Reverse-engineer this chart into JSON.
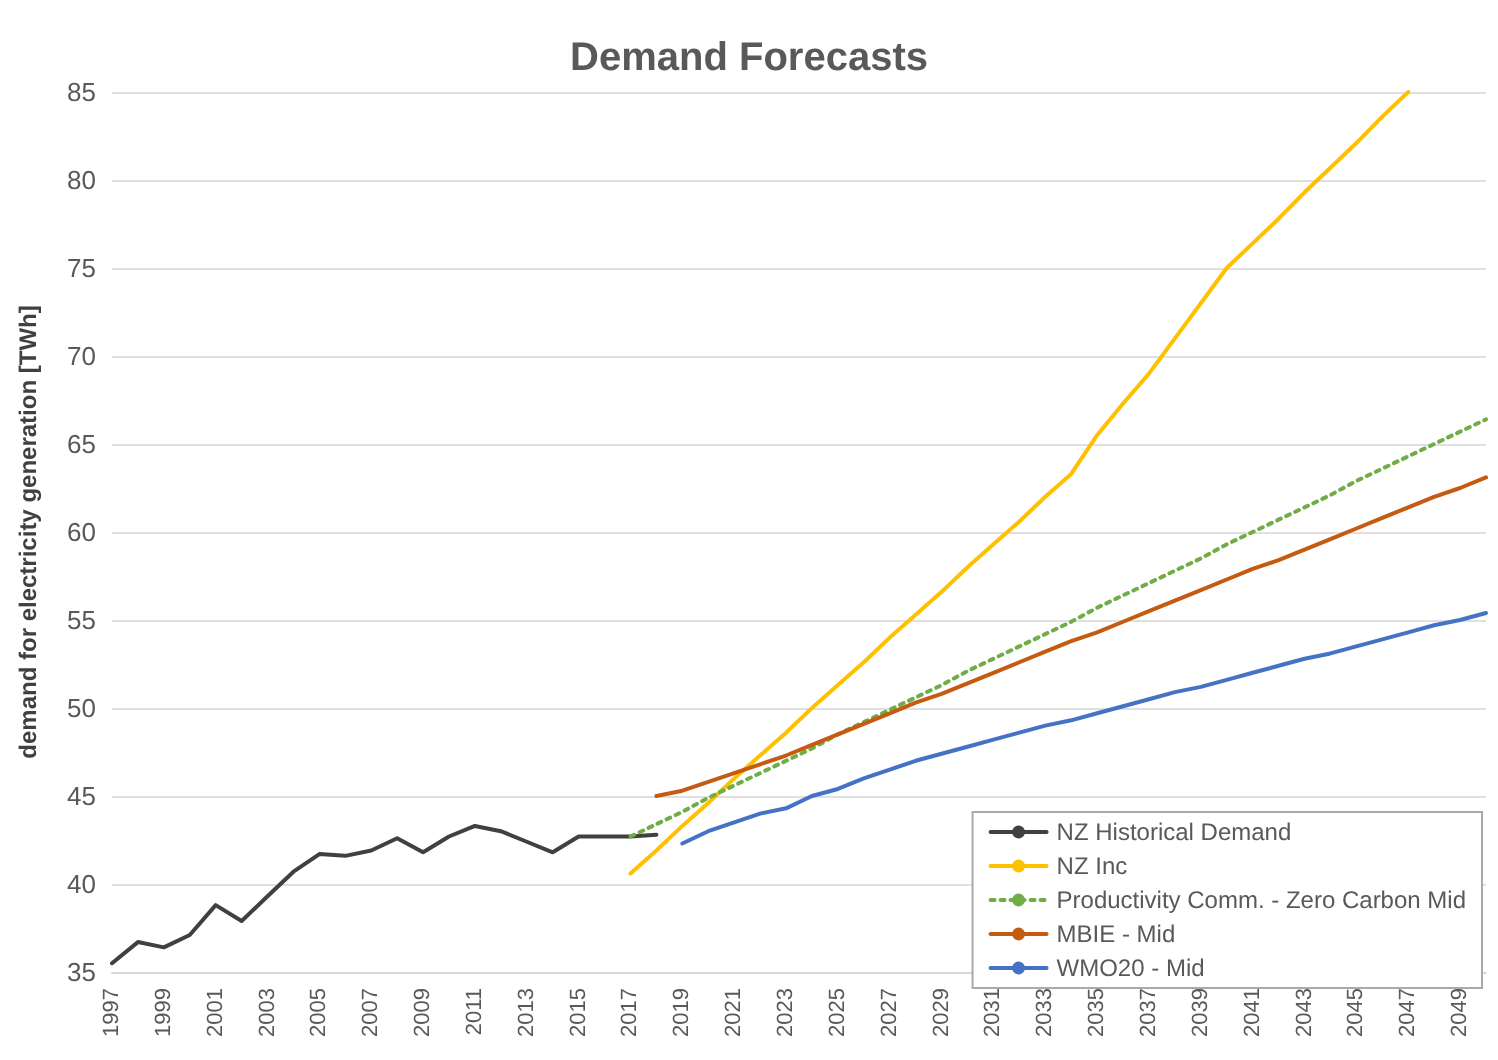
{
  "chart_data": {
    "type": "line",
    "title": "Demand Forecasts",
    "ylabel": "demand for electricity generation [TWh]",
    "categories": [
      "1997",
      null,
      "1999",
      null,
      "2001",
      null,
      "2003",
      null,
      "2005",
      null,
      "2007",
      null,
      "2009",
      null,
      "2011",
      null,
      "2013",
      null,
      "2015",
      null,
      "2017",
      null,
      "2019",
      null,
      "2021",
      null,
      "2023",
      null,
      "2025",
      null,
      "2027",
      null,
      "2029",
      null,
      "2031",
      null,
      "2033",
      null,
      "2035",
      null,
      "2037",
      null,
      "2039",
      null,
      "2041",
      null,
      "2043",
      null,
      "2045",
      null,
      "2047",
      null,
      "2049",
      null
    ],
    "ylim": [
      35,
      85
    ],
    "yticks": [
      35,
      40,
      45,
      50,
      55,
      60,
      65,
      70,
      75,
      80,
      85
    ],
    "grid": "y",
    "legend": "bottom right",
    "marker": "none",
    "series": [
      {
        "name": "NZ Historical Demand",
        "color": "#404040",
        "line_style": "solid",
        "values": [
          35.5,
          36.7,
          36.4,
          37.1,
          38.8,
          37.9,
          39.3,
          40.7,
          41.7,
          41.6,
          41.9,
          42.6,
          41.8,
          42.7,
          43.3,
          43.0,
          42.4,
          41.8,
          42.7,
          42.7,
          42.7,
          42.8,
          null,
          null,
          null,
          null,
          null,
          null,
          null,
          null,
          null,
          null,
          null,
          null,
          null,
          null,
          null,
          null,
          null,
          null,
          null,
          null,
          null,
          null,
          null,
          null,
          null,
          null,
          null,
          null,
          null,
          null,
          null,
          null
        ]
      },
      {
        "name": "NZ Inc",
        "color": "#ffc000",
        "line_style": "solid",
        "values": [
          null,
          null,
          null,
          null,
          null,
          null,
          null,
          null,
          null,
          null,
          null,
          null,
          null,
          null,
          null,
          null,
          null,
          null,
          null,
          null,
          40.6,
          41.9,
          43.3,
          44.6,
          46.0,
          47.3,
          48.6,
          50.0,
          51.3,
          52.6,
          54.0,
          55.3,
          56.6,
          58.0,
          59.3,
          60.6,
          62.0,
          63.3,
          65.5,
          67.3,
          69.0,
          71.0,
          73.0,
          75.0,
          76.4,
          77.8,
          79.3,
          80.7,
          82.1,
          83.6,
          85.0,
          null,
          null,
          null
        ]
      },
      {
        "name": "Productivity Comm. - Zero Carbon Mid",
        "color": "#70ad47",
        "line_style": "dotted",
        "values": [
          null,
          null,
          null,
          null,
          null,
          null,
          null,
          null,
          null,
          null,
          null,
          null,
          null,
          null,
          null,
          null,
          null,
          null,
          null,
          null,
          42.7,
          43.4,
          44.1,
          44.9,
          45.6,
          46.3,
          47.0,
          47.7,
          48.5,
          49.2,
          49.9,
          50.6,
          51.3,
          52.1,
          52.8,
          53.5,
          54.2,
          54.9,
          55.7,
          56.4,
          57.1,
          57.8,
          58.5,
          59.3,
          60.0,
          60.7,
          61.4,
          62.1,
          62.9,
          63.6,
          64.3,
          65.0,
          65.7,
          66.4
        ]
      },
      {
        "name": "MBIE - Mid",
        "color": "#c55a11",
        "line_style": "solid",
        "values": [
          null,
          null,
          null,
          null,
          null,
          null,
          null,
          null,
          null,
          null,
          null,
          null,
          null,
          null,
          null,
          null,
          null,
          null,
          null,
          null,
          null,
          45.0,
          45.3,
          45.8,
          46.3,
          46.8,
          47.3,
          47.9,
          48.5,
          49.1,
          49.7,
          50.3,
          50.8,
          51.4,
          52.0,
          52.6,
          53.2,
          53.8,
          54.3,
          54.9,
          55.5,
          56.1,
          56.7,
          57.3,
          57.9,
          58.4,
          59.0,
          59.6,
          60.2,
          60.8,
          61.4,
          62.0,
          62.5,
          63.1
        ]
      },
      {
        "name": "WMO20 - Mid",
        "color": "#4472c4",
        "line_style": "solid",
        "values": [
          null,
          null,
          null,
          null,
          null,
          null,
          null,
          null,
          null,
          null,
          null,
          null,
          null,
          null,
          null,
          null,
          null,
          null,
          null,
          null,
          null,
          null,
          42.3,
          43.0,
          43.5,
          44.0,
          44.3,
          45.0,
          45.4,
          46.0,
          46.5,
          47.0,
          47.4,
          47.8,
          48.2,
          48.6,
          49.0,
          49.3,
          49.7,
          50.1,
          50.5,
          50.9,
          51.2,
          51.6,
          52.0,
          52.4,
          52.8,
          53.1,
          53.5,
          53.9,
          54.3,
          54.7,
          55.0,
          55.4
        ]
      }
    ]
  }
}
